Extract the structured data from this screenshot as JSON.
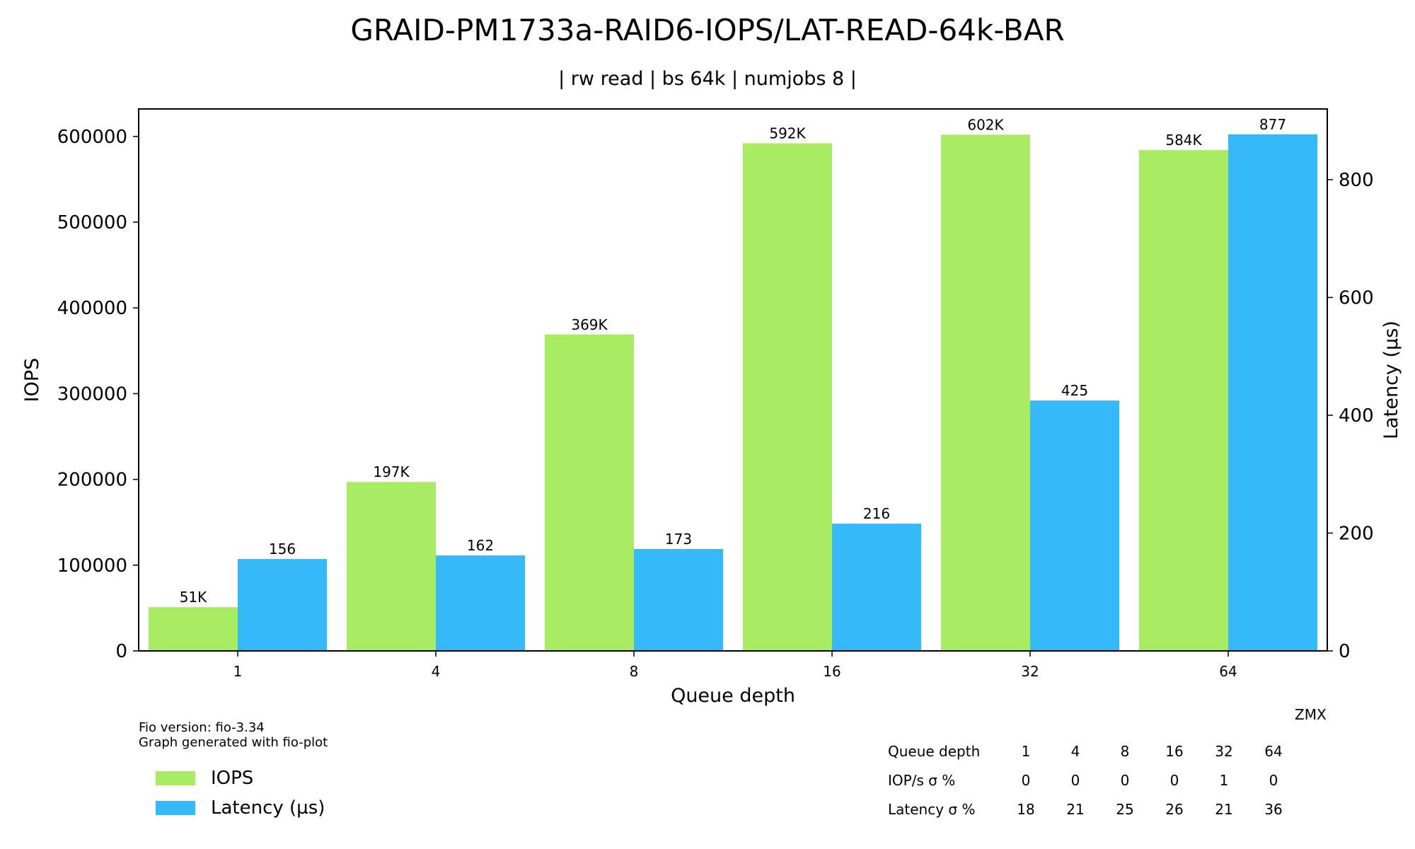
{
  "header": {
    "title": "GRAID-PM1733a-RAID6-IOPS/LAT-READ-64k-BAR",
    "subtitle": "| rw read | bs 64k | numjobs 8 |"
  },
  "footer": {
    "fio_version": "Fio version: fio-3.34",
    "generated_by": "Graph generated with fio-plot",
    "watermark": "ZMX"
  },
  "legend": {
    "items": [
      {
        "label": "IOPS",
        "color": "#a9ec64"
      },
      {
        "label": "Latency (µs)",
        "color": "#35b9f9"
      }
    ]
  },
  "stats_table": {
    "header_label": "Queue depth",
    "columns": [
      "1",
      "4",
      "8",
      "16",
      "32",
      "64"
    ],
    "rows": [
      {
        "label": "IOP/s σ %",
        "values": [
          "0",
          "0",
          "0",
          "0",
          "1",
          "0"
        ]
      },
      {
        "label": "Latency σ %",
        "values": [
          "18",
          "21",
          "25",
          "26",
          "21",
          "36"
        ]
      }
    ]
  },
  "chart_data": {
    "type": "bar",
    "title": "GRAID-PM1733a-RAID6-IOPS/LAT-READ-64k-BAR",
    "subtitle": "| rw read | bs 64k | numjobs 8 |",
    "xlabel": "Queue depth",
    "ylabel": "IOPS",
    "y2label": "Latency (µs)",
    "categories": [
      "1",
      "4",
      "8",
      "16",
      "32",
      "64"
    ],
    "ylim": [
      0,
      632000
    ],
    "y2lim": [
      0,
      920
    ],
    "yticks": [
      0,
      100000,
      200000,
      300000,
      400000,
      500000,
      600000
    ],
    "y2ticks": [
      0,
      200,
      400,
      600,
      800
    ],
    "grid": false,
    "legend_position": "bottom-left",
    "series": [
      {
        "name": "IOPS",
        "axis": "left",
        "color": "#a9ec64",
        "values": [
          51000,
          197000,
          369000,
          592000,
          602000,
          584000
        ],
        "labels": [
          "51K",
          "197K",
          "369K",
          "592K",
          "602K",
          "584K"
        ]
      },
      {
        "name": "Latency (µs)",
        "axis": "right",
        "color": "#35b9f9",
        "values": [
          156,
          162,
          173,
          216,
          425,
          877
        ],
        "labels": [
          "156",
          "162",
          "173",
          "216",
          "425",
          "877"
        ]
      }
    ]
  }
}
